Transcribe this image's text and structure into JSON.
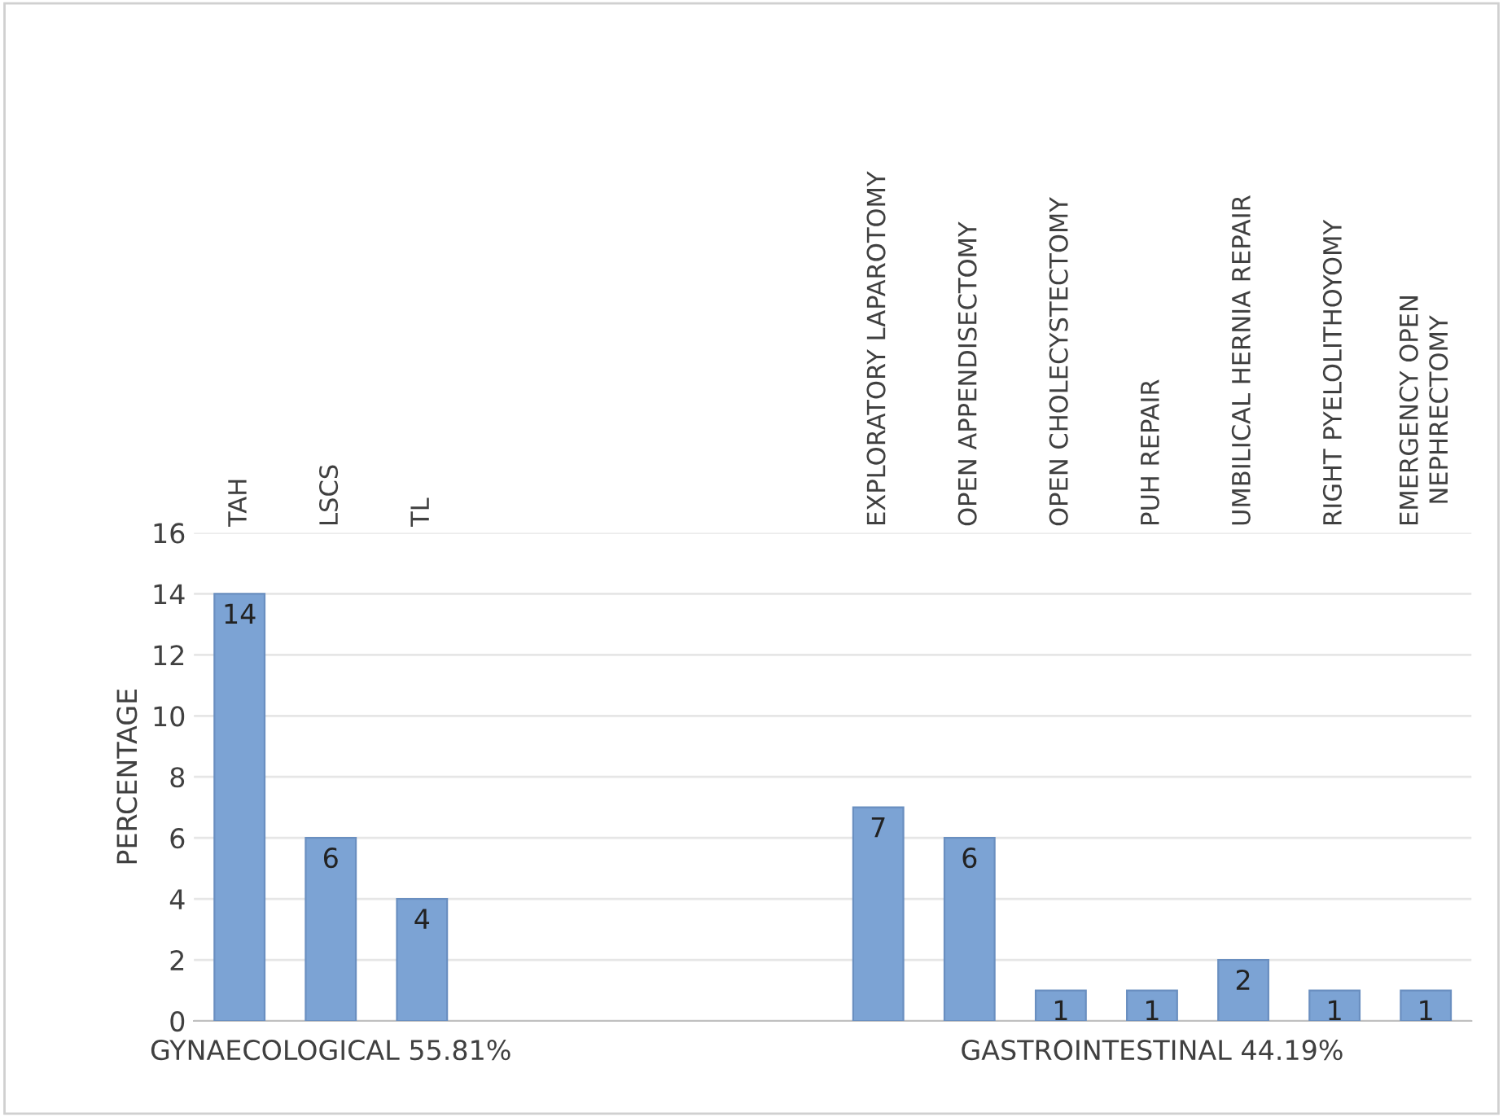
{
  "chart_data": {
    "type": "bar",
    "ylabel": "PERCENTAGE",
    "categories": [
      "TAH",
      "LSCS",
      "TL",
      null,
      null,
      null,
      null,
      "EXPLORATORY LAPAROTOMY",
      "OPEN APPENDISECTOMY",
      "OPEN CHOLECYSTECTOMY",
      "PUH REPAIR",
      "UMBILICAL HERNIA REPAIR",
      "RIGHT PYELOLITHOYOMY",
      "EMERGENCY OPEN\nNEPHRECTOMY"
    ],
    "values": [
      14,
      6,
      4,
      null,
      null,
      null,
      null,
      7,
      6,
      1,
      1,
      2,
      1,
      1
    ],
    "color": "#7ca3d4",
    "ylim": [
      0,
      16
    ],
    "yticks": [
      0,
      2,
      4,
      6,
      8,
      10,
      12,
      14,
      16
    ],
    "grid": "y",
    "data_labels": true,
    "annotations": [
      "GYNAECOLOGICAL 55.81%",
      "GASTROINTESTINAL 44.19%"
    ]
  }
}
